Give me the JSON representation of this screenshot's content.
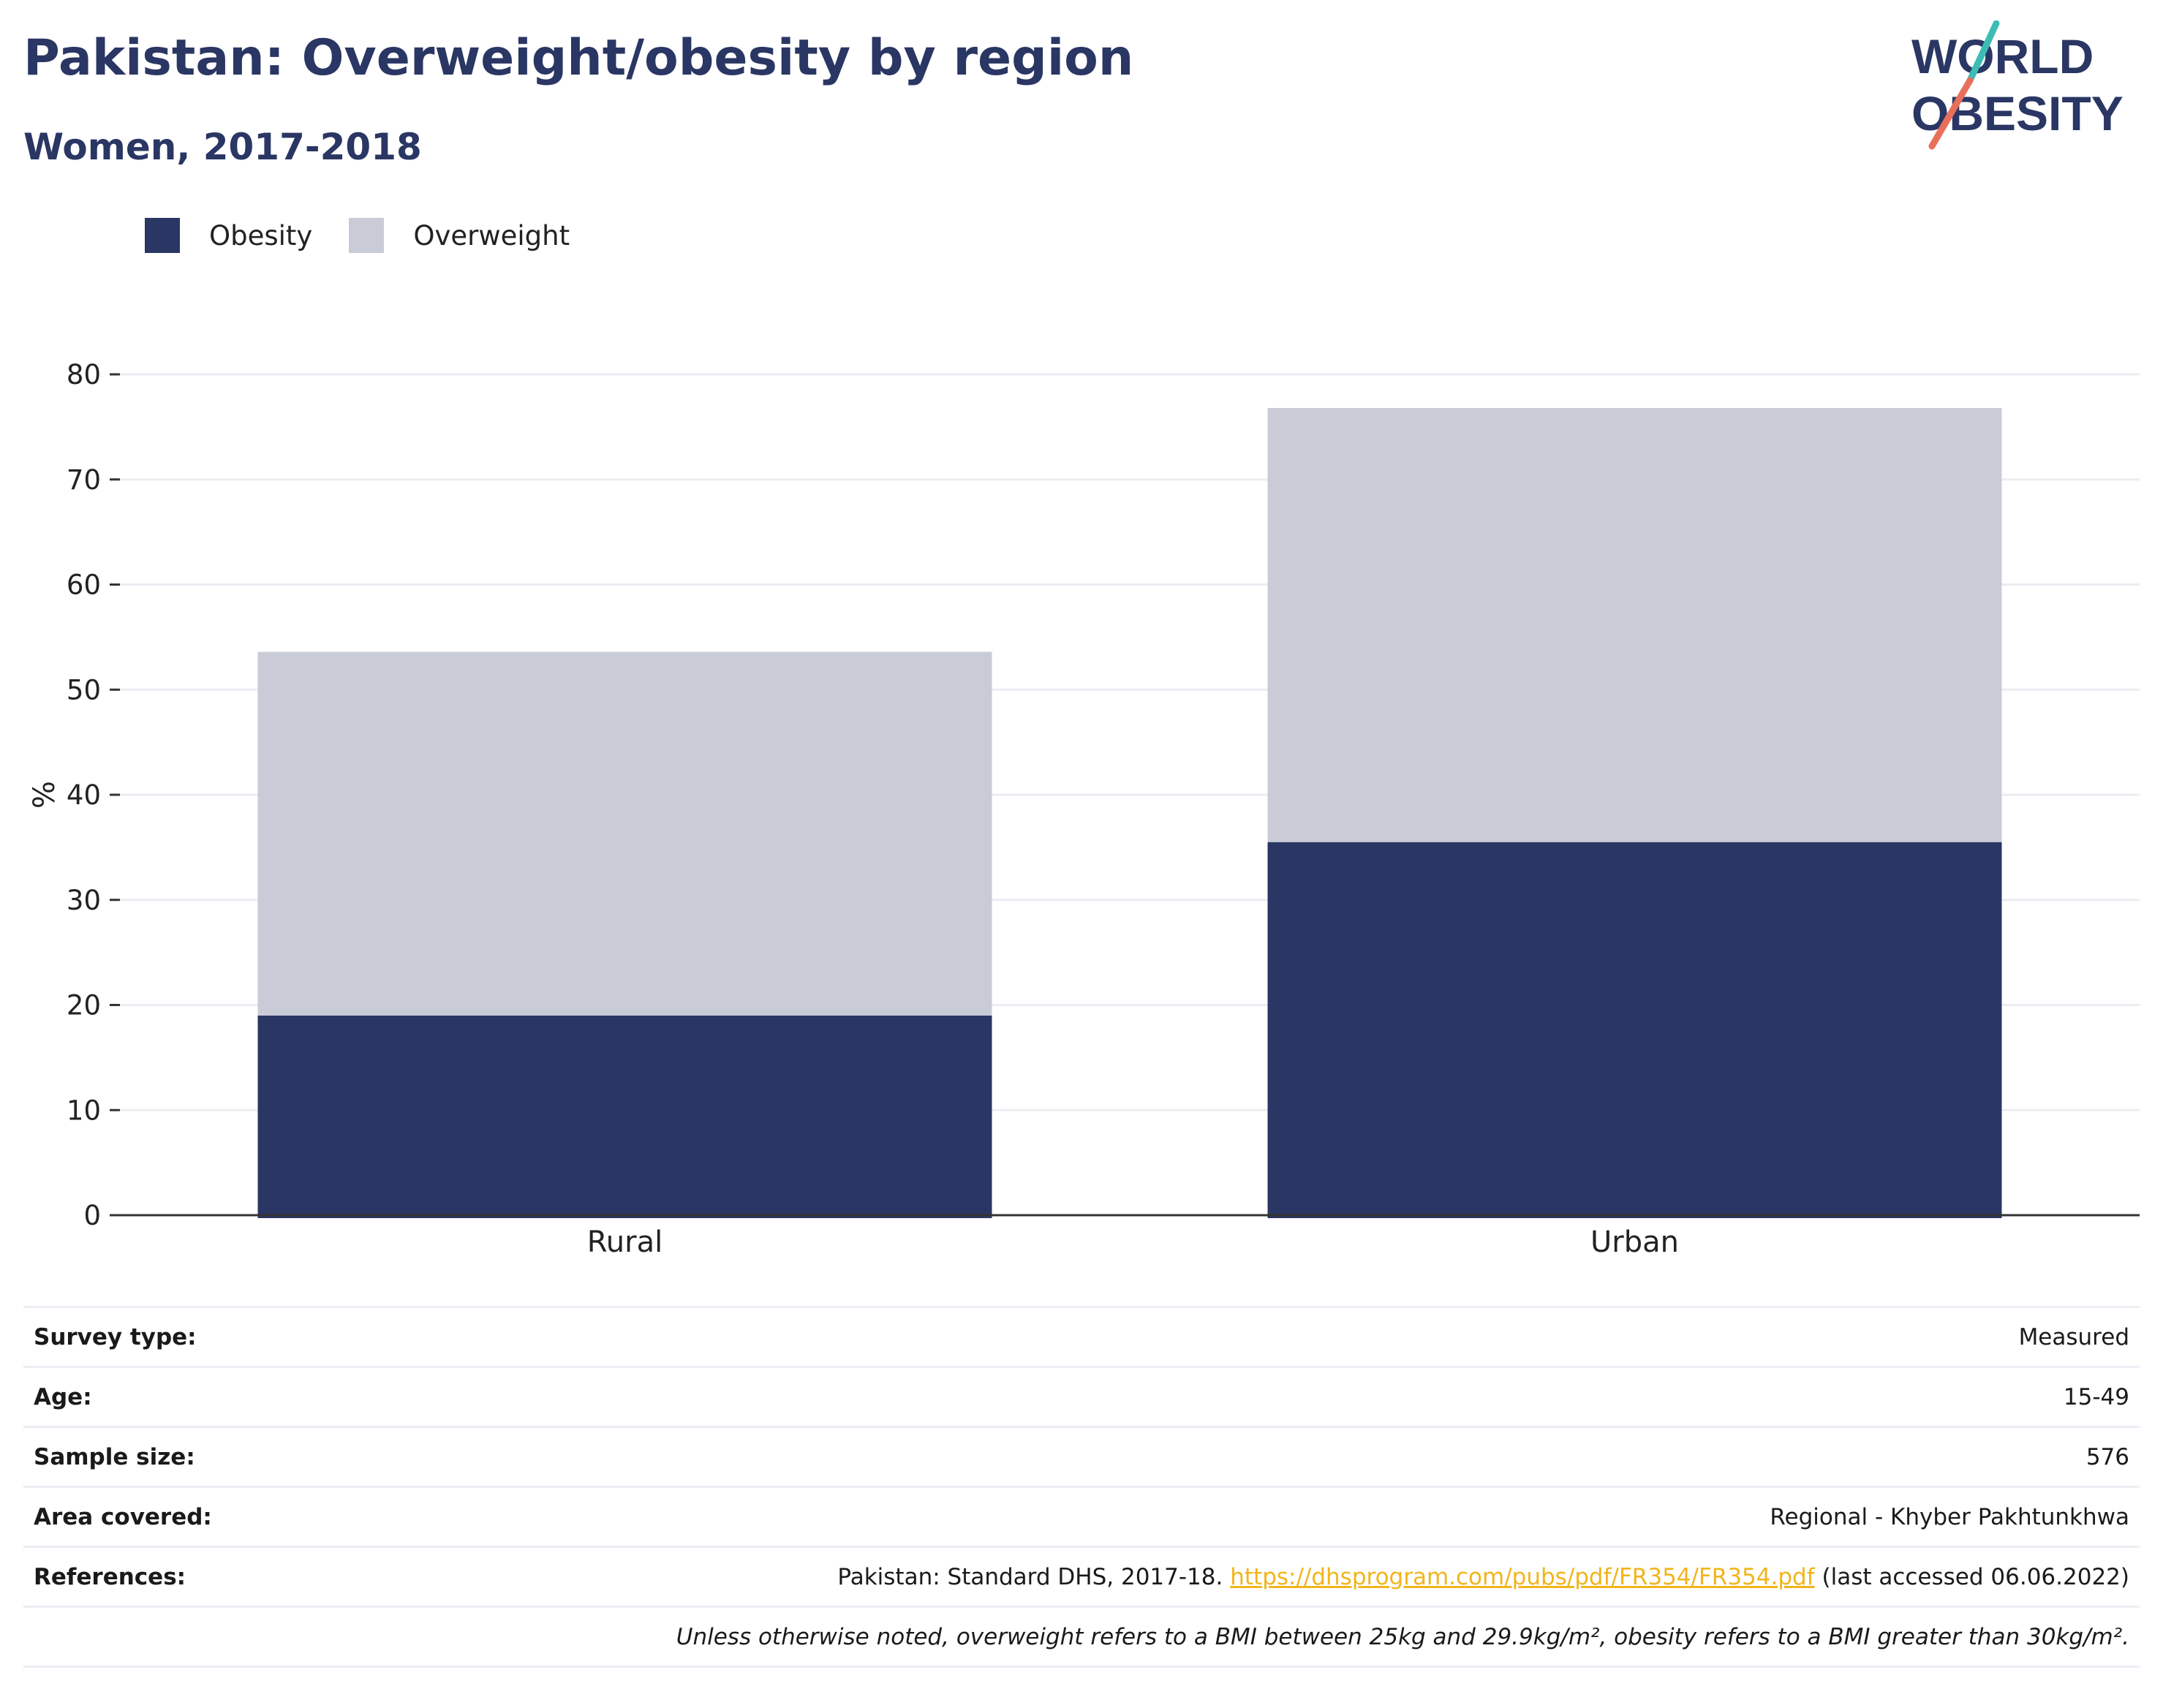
{
  "header": {
    "title": "Pakistan: Overweight/obesity by region",
    "subtitle": "Women, 2017-2018"
  },
  "logo": {
    "line1": "WORLD",
    "line2": "OBESITY",
    "colors": {
      "text": "#2a3663",
      "slash_top": "#3cbcb4",
      "slash_bottom": "#e8705a"
    }
  },
  "chart_data": {
    "type": "bar",
    "stacked": true,
    "categories": [
      "Rural",
      "Urban"
    ],
    "series": [
      {
        "name": "Obesity",
        "color": "#2a3663",
        "values": [
          19.0,
          35.5
        ]
      },
      {
        "name": "Overweight",
        "color": "#c9ccd7",
        "values": [
          34.6,
          41.3
        ]
      }
    ],
    "ylabel": "%",
    "xlabel": "",
    "ylim": [
      0,
      80
    ],
    "yticks": [
      0,
      10,
      20,
      30,
      40,
      50,
      60,
      70,
      80
    ],
    "grid": true,
    "legend_position": "top-left"
  },
  "info": {
    "survey_type": {
      "label": "Survey type:",
      "value": "Measured"
    },
    "age": {
      "label": "Age:",
      "value": "15-49"
    },
    "sample_size": {
      "label": "Sample size:",
      "value": "576"
    },
    "area": {
      "label": "Area covered:",
      "value": "Regional - Khyber Pakhtunkhwa"
    },
    "references": {
      "label": "References:",
      "prefix": "Pakistan: Standard DHS, 2017-18.",
      "link": "https://dhsprogram.com/pubs/pdf/FR354/FR354.pdf",
      "suffix": "(last accessed 06.06.2022)"
    },
    "note": "Unless otherwise noted, overweight refers to a BMI between 25kg and 29.9kg/m², obesity refers to a BMI greater than 30kg/m²."
  }
}
